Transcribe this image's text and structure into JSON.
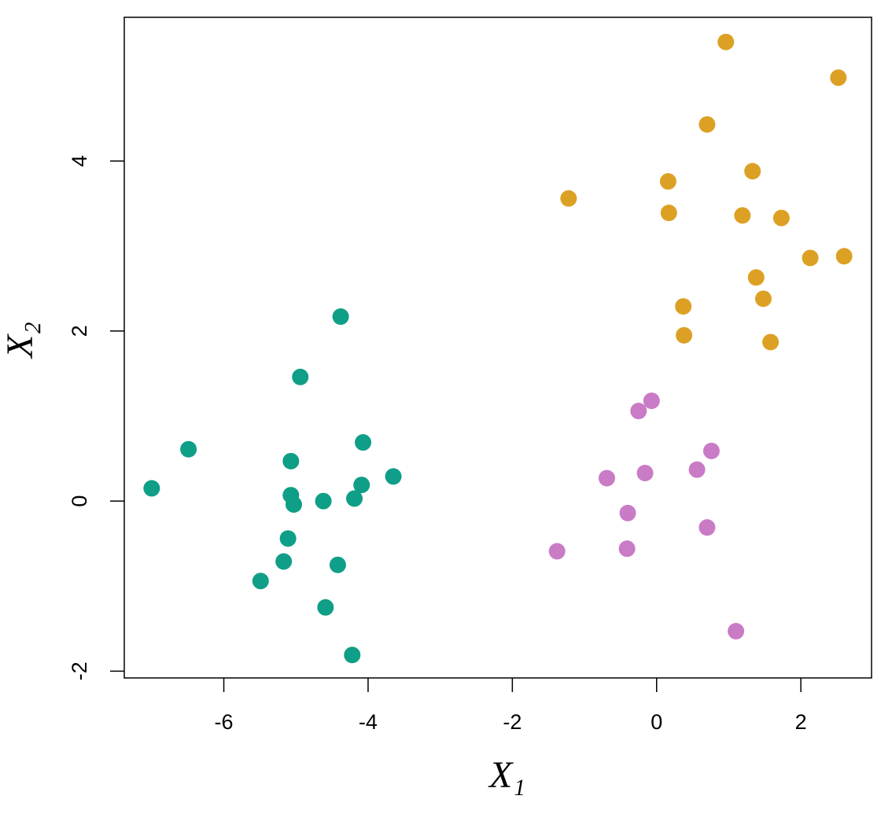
{
  "chart_data": {
    "type": "scatter",
    "xlabel": "X₁",
    "ylabel": "X₂",
    "xlim": [
      -7.38,
      2.98
    ],
    "ylim": [
      -2.08,
      5.69
    ],
    "xticks": [
      -6,
      -4,
      -2,
      0,
      2
    ],
    "yticks": [
      -2,
      0,
      2,
      4
    ],
    "series": [
      {
        "color": "#0f9e87",
        "x": [
          -4.38,
          -4.94,
          -6.49,
          -7.0,
          -4.07,
          -5.07,
          -3.65,
          -4.09,
          -5.07,
          -5.03,
          -4.62,
          -4.19,
          -5.11,
          -5.17,
          -4.42,
          -5.49,
          -4.59,
          -4.22
        ],
        "y": [
          2.17,
          1.46,
          0.61,
          0.15,
          0.69,
          0.47,
          0.29,
          0.19,
          0.07,
          -0.04,
          0.0,
          0.03,
          -0.44,
          -0.71,
          -0.75,
          -0.94,
          -1.25,
          -1.81
        ]
      },
      {
        "color": "#dca124",
        "x": [
          0.96,
          2.52,
          0.7,
          1.33,
          0.16,
          -1.22,
          0.17,
          1.19,
          1.73,
          2.13,
          2.6,
          1.38,
          1.48,
          0.37,
          0.38,
          1.58
        ],
        "y": [
          5.4,
          4.98,
          4.43,
          3.88,
          3.76,
          3.56,
          3.39,
          3.36,
          3.33,
          2.86,
          2.88,
          2.63,
          2.38,
          2.29,
          1.95,
          1.87
        ]
      },
      {
        "color": "#c97bc6",
        "x": [
          -0.07,
          -0.25,
          0.76,
          0.56,
          -0.16,
          -0.69,
          -0.4,
          0.7,
          -0.41,
          -1.38,
          1.1
        ],
        "y": [
          1.18,
          1.06,
          0.59,
          0.37,
          0.33,
          0.27,
          -0.14,
          -0.31,
          -0.56,
          -0.59,
          -1.53
        ]
      }
    ]
  }
}
